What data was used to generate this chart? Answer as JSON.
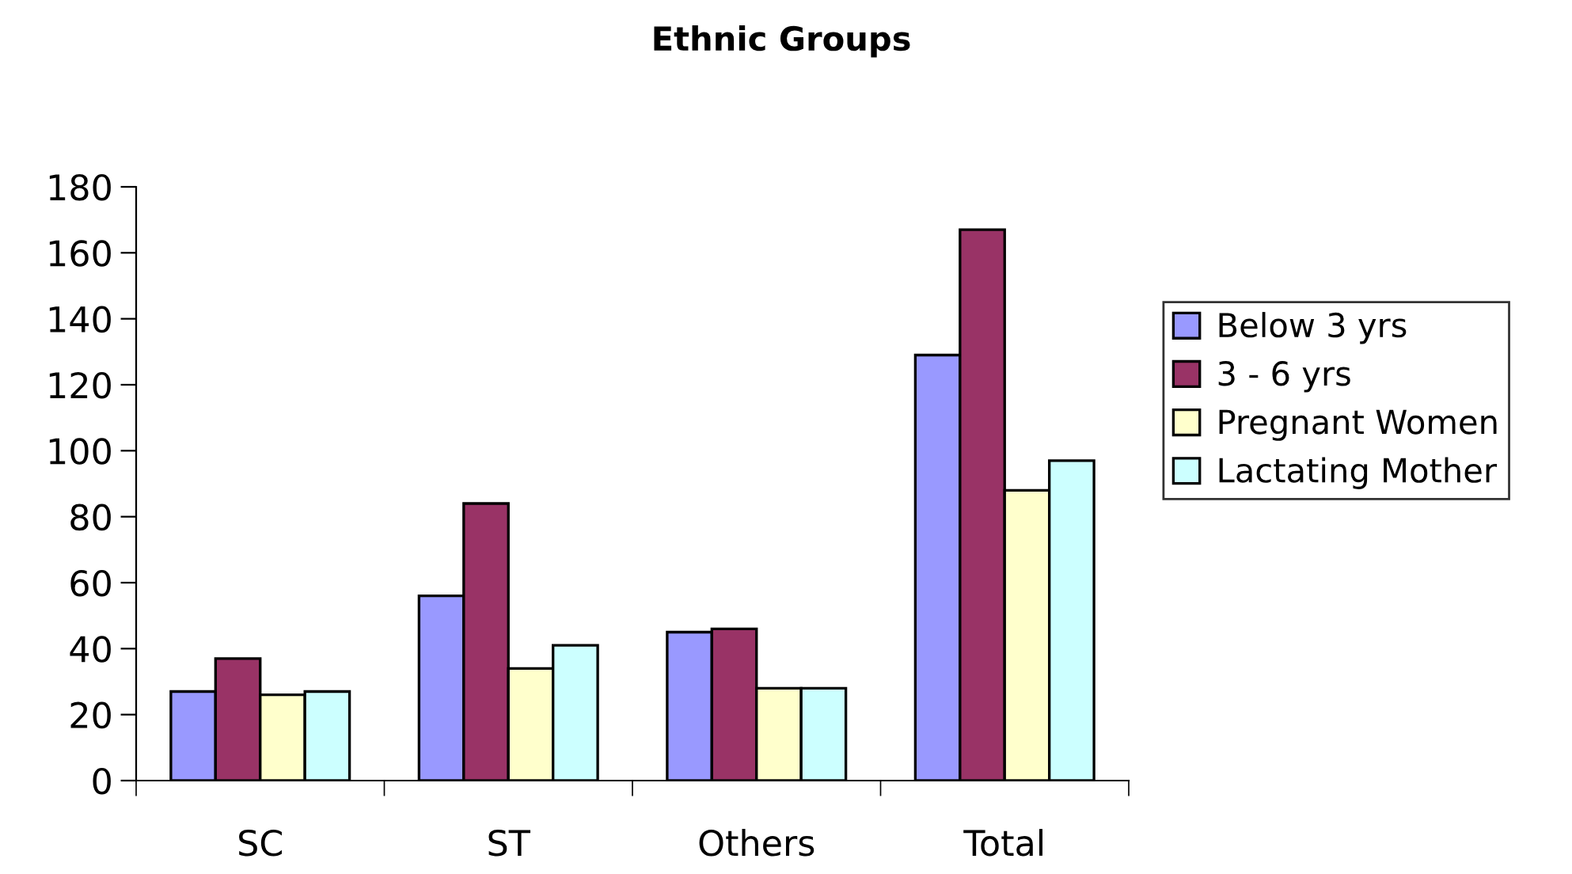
{
  "chart_data": {
    "type": "bar",
    "title": "Ethnic Groups",
    "categories": [
      "SC",
      "ST",
      "Others",
      "Total"
    ],
    "series": [
      {
        "name": "Below 3 yrs",
        "color": "#9999ff",
        "values": [
          27,
          56,
          45,
          129
        ]
      },
      {
        "name": "3 - 6 yrs",
        "color": "#993366",
        "values": [
          37,
          84,
          46,
          167
        ]
      },
      {
        "name": "Pregnant Women",
        "color": "#ffffcc",
        "values": [
          26,
          34,
          28,
          88
        ]
      },
      {
        "name": "Lactating Mother",
        "color": "#ccffff",
        "values": [
          27,
          41,
          28,
          97
        ]
      }
    ],
    "ylim": [
      0,
      180
    ],
    "yticks": [
      0,
      20,
      40,
      60,
      80,
      100,
      120,
      140,
      160,
      180
    ],
    "grid": false,
    "legend": "right"
  }
}
